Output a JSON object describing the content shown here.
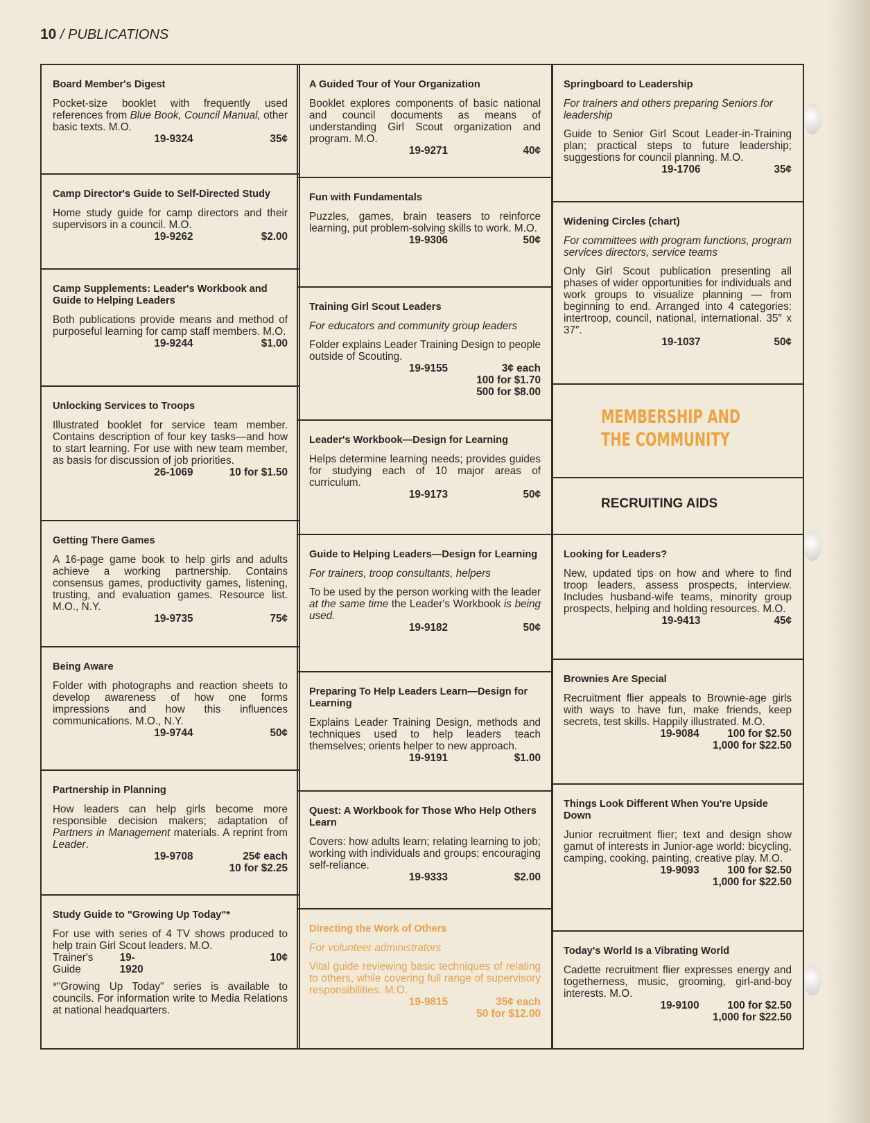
{
  "header": {
    "page_number": "10",
    "section": "/ PUBLICATIONS"
  },
  "columns": [
    [
      {
        "title": "Board Member's Digest",
        "desc": [
          {
            "t": "Pocket-size booklet with frequently used references from "
          },
          {
            "t": "Blue Book, Council Manual,",
            "i": true
          },
          {
            "t": " other basic texts. M.O."
          }
        ],
        "code": "19-9324",
        "prices": [
          "35¢"
        ]
      },
      {
        "title": "Camp Director's Guide to Self-Directed Study",
        "desc": [
          {
            "t": "Home study guide for camp directors and their supervisors in a council. M.O."
          }
        ],
        "code": "19-9262",
        "prices": [
          "$2.00"
        ]
      },
      {
        "title": "Camp Supplements: Leader's Workbook and Guide to Helping Leaders",
        "desc": [
          {
            "t": "Both publications provide means and method of purposeful learning for camp staff members. M.O."
          }
        ],
        "code": "19-9244",
        "prices": [
          "$1.00"
        ]
      },
      {
        "title": "Unlocking Services to Troops",
        "desc": [
          {
            "t": "Illustrated booklet for service team member. Contains description of four key tasks—and how to start learning. For use with new team member, as basis for discussion of job priorities."
          }
        ],
        "code": "26-1069",
        "prices": [
          "10 for $1.50"
        ]
      },
      {
        "title": "Getting There Games",
        "desc": [
          {
            "t": "A 16-page game book to help girls and adults achieve a working partnership. Contains consensus games, productivity games, listening, trusting, and evaluation games. Resource list. M.O., N.Y."
          }
        ],
        "code": "19-9735",
        "prices": [
          "75¢"
        ]
      },
      {
        "title": "Being Aware",
        "desc": [
          {
            "t": "Folder with photographs and reaction sheets to develop awareness of how one forms impressions and how this influences communications. M.O., N.Y."
          }
        ],
        "code": "19-9744",
        "prices": [
          "50¢"
        ]
      },
      {
        "title": "Partnership in Planning",
        "desc": [
          {
            "t": "How leaders can help girls become more responsible decision makers; adaptation of "
          },
          {
            "t": "Partners in Management",
            "i": true
          },
          {
            "t": " materials. A reprint from "
          },
          {
            "t": "Leader",
            "i": true
          },
          {
            "t": "."
          }
        ],
        "code": "19-9708",
        "prices": [
          "25¢ each",
          "10 for $2.25"
        ]
      },
      {
        "title": "Study Guide to \"Growing Up Today\"*",
        "desc": [
          {
            "t": "For use with series of 4 TV shows produced to help train Girl Scout leaders. M.O."
          }
        ],
        "label": "Trainer's Guide",
        "code": "19-1920",
        "prices": [
          "10¢"
        ],
        "footnote": "*\"Growing Up Today\" series is available to councils. For information write to Media Relations at national headquarters."
      }
    ],
    [
      {
        "title": "A Guided Tour of Your Organization",
        "desc": [
          {
            "t": "Booklet explores components of basic national and council documents as means of understanding Girl Scout organization and program. M.O."
          }
        ],
        "code": "19-9271",
        "prices": [
          "40¢"
        ]
      },
      {
        "title": "Fun with Fundamentals",
        "desc": [
          {
            "t": "Puzzles, games, brain teasers to reinforce learning, put problem-solving skills to work. M.O."
          }
        ],
        "code": "19-9306",
        "prices": [
          "50¢"
        ]
      },
      {
        "title": "Training Girl Scout Leaders",
        "subtitle": "For educators and community group leaders",
        "desc": [
          {
            "t": "Folder explains Leader Training Design to people outside of Scouting."
          }
        ],
        "code": "19-9155",
        "prices": [
          "3¢ each",
          "100 for $1.70",
          "500 for $8.00"
        ]
      },
      {
        "title": "Leader's Workbook—Design for Learning",
        "desc": [
          {
            "t": "Helps determine learning needs; provides guides for studying each of 10 major areas of curriculum."
          }
        ],
        "code": "19-9173",
        "prices": [
          "50¢"
        ]
      },
      {
        "title": "Guide to Helping Leaders—Design for Learning",
        "subtitle": "For trainers, troop consultants, helpers",
        "desc": [
          {
            "t": "To be used by the person working with the leader "
          },
          {
            "t": "at the same time",
            "i": true
          },
          {
            "t": " the Leader's Workbook "
          },
          {
            "t": "is being used.",
            "i": true
          }
        ],
        "code": "19-9182",
        "prices": [
          "50¢"
        ]
      },
      {
        "title": "Preparing To Help Leaders Learn—Design for Learning",
        "desc": [
          {
            "t": "Explains Leader Training Design, methods and techniques used to help leaders teach themselves; orients helper to new approach."
          }
        ],
        "code": "19-9191",
        "prices": [
          "$1.00"
        ]
      },
      {
        "title": "Quest: A Workbook for Those Who Help Others Learn",
        "desc": [
          {
            "t": "Covers: how adults learn; relating learning to job; working with individuals and groups; encouraging self-reliance."
          }
        ],
        "code": "19-9333",
        "prices": [
          "$2.00"
        ]
      },
      {
        "title": "Directing the Work of Others",
        "subtitle": "For volunteer administrators",
        "desc": [
          {
            "t": "Vital guide reviewing basic techniques of relating to others, while covering full range of supervisory responsibilities. M.O."
          }
        ],
        "code": "19-9815",
        "prices": [
          "35¢ each",
          "50 for $12.00"
        ],
        "highlight": true
      }
    ],
    [
      {
        "title": "Springboard to Leadership",
        "subtitle": "For trainers and others preparing Seniors for leadership",
        "desc": [
          {
            "t": "Guide to Senior Girl Scout Leader-in-Training plan; practical steps to future leadership; suggestions for council planning. M.O."
          }
        ],
        "code": "19-1706",
        "prices": [
          "35¢"
        ]
      },
      {
        "title": "Widening Circles (chart)",
        "subtitle": "For committees with program functions, program services directors, service teams",
        "desc": [
          {
            "t": "Only Girl Scout publication presenting all phases of wider opportunities for individuals and work groups to visualize planning — from beginning to end. Arranged into 4 categories: intertroop, council, national, international. 35″ x 37″."
          }
        ],
        "code": "19-1037",
        "prices": [
          "50¢"
        ]
      },
      {
        "section_heading": "MEMBERSHIP AND THE COMMUNITY"
      },
      {
        "subsection_heading": "RECRUITING AIDS"
      },
      {
        "title": "Looking for Leaders?",
        "desc": [
          {
            "t": "New, updated tips on how and where to find troop leaders, assess prospects, interview. Includes husband-wife teams, minority group prospects, helping and holding resources. M.O."
          }
        ],
        "code": "19-9413",
        "prices": [
          "45¢"
        ]
      },
      {
        "title": "Brownies Are Special",
        "desc": [
          {
            "t": "Recruitment flier appeals to Brownie-age girls with ways to have fun, make friends, keep secrets, test skills. Happily illustrated. M.O."
          }
        ],
        "code": "19-9084",
        "prices": [
          "100 for $2.50",
          "1,000 for $22.50"
        ]
      },
      {
        "title": "Things Look Different When You're Upside Down",
        "desc": [
          {
            "t": "Junior recruitment flier; text and design show gamut of interests in Junior-age world: bicycling, camping, cooking, painting, creative play. M.O."
          }
        ],
        "code": "19-9093",
        "prices": [
          "100 for $2.50",
          "1,000 for $22.50"
        ]
      },
      {
        "title": "Today's World Is a Vibrating World",
        "desc": [
          {
            "t": "Cadette recruitment flier expresses energy and togetherness, music, grooming, girl-and-boy interests. M.O."
          }
        ],
        "code": "19-9100",
        "prices": [
          "100 for $2.50",
          "1,000 for $22.50"
        ]
      }
    ]
  ],
  "colors": {
    "ink": "#2a2623",
    "accent_orange": "#e8a04c",
    "paper": "#f1ead9"
  }
}
